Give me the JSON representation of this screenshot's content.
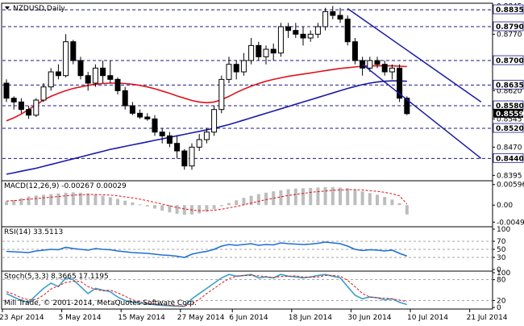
{
  "chart_data": [
    {
      "type": "candlestick",
      "title": "NZDUSD,Daily",
      "ylim": [
        0.8385,
        0.8848
      ],
      "y_ticks": [
        "0.8845",
        "0.8770",
        "0.8695",
        "0.8620",
        "0.8545",
        "0.8470",
        "0.8395"
      ],
      "level_lines": [
        {
          "value": 0.8835,
          "label": "0.8835"
        },
        {
          "value": 0.879,
          "label": "0.8790"
        },
        {
          "value": 0.87,
          "label": "0.8700"
        },
        {
          "value": 0.8635,
          "label": "0.8635"
        },
        {
          "value": 0.858,
          "label": "0.8580"
        },
        {
          "value": 0.852,
          "label": "0.8520"
        },
        {
          "value": 0.844,
          "label": "0.8440"
        }
      ],
      "current_price": {
        "value": 0.8559,
        "label": "0.8559"
      },
      "candles": [
        [
          0.864,
          0.865,
          0.859,
          0.86
        ],
        [
          0.86,
          0.8605,
          0.857,
          0.859
        ],
        [
          0.859,
          0.86,
          0.856,
          0.857
        ],
        [
          0.857,
          0.858,
          0.8545,
          0.8555
        ],
        [
          0.8555,
          0.86,
          0.855,
          0.8595
        ],
        [
          0.8595,
          0.864,
          0.859,
          0.863
        ],
        [
          0.863,
          0.868,
          0.862,
          0.867
        ],
        [
          0.867,
          0.869,
          0.865,
          0.866
        ],
        [
          0.866,
          0.877,
          0.8655,
          0.875
        ],
        [
          0.875,
          0.8755,
          0.869,
          0.87
        ],
        [
          0.87,
          0.871,
          0.865,
          0.866
        ],
        [
          0.866,
          0.867,
          0.862,
          0.864
        ],
        [
          0.864,
          0.869,
          0.863,
          0.868
        ],
        [
          0.868,
          0.87,
          0.864,
          0.866
        ],
        [
          0.866,
          0.87,
          0.864,
          0.865
        ],
        [
          0.865,
          0.8655,
          0.861,
          0.862
        ],
        [
          0.862,
          0.863,
          0.857,
          0.858
        ],
        [
          0.858,
          0.859,
          0.8555,
          0.856
        ],
        [
          0.856,
          0.857,
          0.8545,
          0.855
        ],
        [
          0.855,
          0.856,
          0.854,
          0.8545
        ],
        [
          0.8545,
          0.8555,
          0.85,
          0.851
        ],
        [
          0.851,
          0.852,
          0.848,
          0.85
        ],
        [
          0.85,
          0.851,
          0.847,
          0.848
        ],
        [
          0.848,
          0.85,
          0.844,
          0.846
        ],
        [
          0.846,
          0.8465,
          0.841,
          0.842
        ],
        [
          0.842,
          0.848,
          0.841,
          0.847
        ],
        [
          0.847,
          0.8505,
          0.846,
          0.849
        ],
        [
          0.849,
          0.852,
          0.848,
          0.851
        ],
        [
          0.851,
          0.858,
          0.85,
          0.857
        ],
        [
          0.857,
          0.866,
          0.856,
          0.865
        ],
        [
          0.865,
          0.871,
          0.864,
          0.869
        ],
        [
          0.869,
          0.87,
          0.865,
          0.867
        ],
        [
          0.867,
          0.872,
          0.866,
          0.87
        ],
        [
          0.87,
          0.876,
          0.869,
          0.874
        ],
        [
          0.874,
          0.875,
          0.87,
          0.871
        ],
        [
          0.871,
          0.874,
          0.869,
          0.873
        ],
        [
          0.873,
          0.8745,
          0.87,
          0.872
        ],
        [
          0.872,
          0.88,
          0.871,
          0.879
        ],
        [
          0.879,
          0.88,
          0.876,
          0.878
        ],
        [
          0.878,
          0.88,
          0.876,
          0.877
        ],
        [
          0.877,
          0.879,
          0.874,
          0.876
        ],
        [
          0.876,
          0.878,
          0.875,
          0.877
        ],
        [
          0.877,
          0.88,
          0.876,
          0.879
        ],
        [
          0.879,
          0.884,
          0.878,
          0.883
        ],
        [
          0.883,
          0.8845,
          0.881,
          0.882
        ],
        [
          0.882,
          0.884,
          0.88,
          0.881
        ],
        [
          0.881,
          0.882,
          0.874,
          0.875
        ],
        [
          0.875,
          0.876,
          0.869,
          0.87
        ],
        [
          0.87,
          0.871,
          0.866,
          0.868
        ],
        [
          0.868,
          0.871,
          0.867,
          0.87
        ],
        [
          0.87,
          0.871,
          0.868,
          0.869
        ],
        [
          0.869,
          0.87,
          0.866,
          0.867
        ],
        [
          0.867,
          0.869,
          0.865,
          0.868
        ],
        [
          0.868,
          0.869,
          0.859,
          0.86
        ],
        [
          0.86,
          0.8605,
          0.8555,
          0.8559
        ]
      ],
      "ma_fast": [
        0.854,
        0.8548,
        0.8558,
        0.857,
        0.8582,
        0.8595,
        0.8605,
        0.8613,
        0.862,
        0.8626,
        0.863,
        0.8634,
        0.8637,
        0.8639,
        0.864,
        0.864,
        0.8639,
        0.8637,
        0.8634,
        0.863,
        0.8625,
        0.8619,
        0.8613,
        0.8606,
        0.86,
        0.8594,
        0.859,
        0.8588,
        0.859,
        0.8596,
        0.8605,
        0.8615,
        0.8624,
        0.8632,
        0.8639,
        0.8645,
        0.865,
        0.8654,
        0.8658,
        0.8661,
        0.8664,
        0.8667,
        0.867,
        0.8673,
        0.8676,
        0.8679,
        0.8681,
        0.8683,
        0.8685,
        0.8686,
        0.8686,
        0.8686,
        0.8686,
        0.8685,
        0.8684
      ],
      "ma_slow": [
        0.8398,
        0.8402,
        0.8406,
        0.841,
        0.8414,
        0.8419,
        0.8424,
        0.8429,
        0.8434,
        0.8439,
        0.8444,
        0.8449,
        0.8454,
        0.8459,
        0.8464,
        0.8468,
        0.8472,
        0.8476,
        0.848,
        0.8484,
        0.8488,
        0.8492,
        0.8496,
        0.85,
        0.8504,
        0.8508,
        0.8512,
        0.8516,
        0.852,
        0.8525,
        0.853,
        0.8536,
        0.8542,
        0.8548,
        0.8554,
        0.856,
        0.8566,
        0.8572,
        0.8578,
        0.8584,
        0.859,
        0.8596,
        0.8602,
        0.8608,
        0.8614,
        0.862,
        0.8626,
        0.8631,
        0.8636,
        0.864,
        0.8643,
        0.8645,
        0.8646,
        0.8646,
        0.8645
      ],
      "trend_lines": [
        {
          "from": [
            46,
            0.8838
          ],
          "to": [
            64,
            0.859
          ]
        },
        {
          "from": [
            48,
            0.869
          ],
          "to": [
            64,
            0.844
          ]
        }
      ]
    },
    {
      "type": "bar",
      "title": "MACD(12,26,9) -0.00267 0.00029",
      "ylim": [
        -0.0058,
        0.0066
      ],
      "y_ticks": [
        "0.00596",
        "0.00",
        "-0.00493"
      ],
      "values": [
        0.001,
        0.0015,
        0.002,
        0.0025,
        0.0028,
        0.003,
        0.0032,
        0.0034,
        0.0036,
        0.0037,
        0.0036,
        0.0034,
        0.0031,
        0.0027,
        0.0023,
        0.0018,
        0.0013,
        0.0008,
        0.0002,
        -0.0004,
        -0.001,
        -0.0016,
        -0.0021,
        -0.0025,
        -0.0028,
        -0.0027,
        -0.0024,
        -0.0019,
        -0.0012,
        -0.0003,
        0.0006,
        0.0014,
        0.0021,
        0.0027,
        0.0032,
        0.0036,
        0.004,
        0.0043,
        0.0046,
        0.0048,
        0.0049,
        0.005,
        0.0051,
        0.0052,
        0.0052,
        0.0051,
        0.0049,
        0.0045,
        0.004,
        0.0035,
        0.003,
        0.0024,
        0.0016,
        0.0006,
        -0.0027
      ],
      "signal": [
        0.0012,
        0.0013,
        0.0015,
        0.0017,
        0.0019,
        0.0021,
        0.0023,
        0.0025,
        0.0027,
        0.0029,
        0.003,
        0.0031,
        0.0031,
        0.003,
        0.0029,
        0.0027,
        0.0024,
        0.0021,
        0.0017,
        0.0013,
        0.0008,
        0.0003,
        -0.0002,
        -0.0007,
        -0.0011,
        -0.0014,
        -0.0016,
        -0.0016,
        -0.0015,
        -0.0012,
        -0.0008,
        -0.0004,
        0.0001,
        0.0006,
        0.0011,
        0.0016,
        0.002,
        0.0024,
        0.0028,
        0.0031,
        0.0034,
        0.0037,
        0.0039,
        0.0041,
        0.0043,
        0.0044,
        0.0045,
        0.0045,
        0.0044,
        0.0042,
        0.004,
        0.0037,
        0.0033,
        0.0027,
        0.0003
      ]
    },
    {
      "type": "line",
      "title": "RSI(14) 33.5113",
      "ylim": [
        0,
        100
      ],
      "y_ticks": [
        100,
        70,
        50,
        30,
        0
      ],
      "level_lines": [
        70,
        50,
        30
      ],
      "values": [
        45,
        44,
        43,
        42,
        46,
        48,
        50,
        49,
        55,
        52,
        50,
        48,
        52,
        50,
        49,
        46,
        44,
        42,
        41,
        40,
        38,
        36,
        35,
        33,
        30,
        38,
        42,
        45,
        50,
        58,
        62,
        60,
        62,
        64,
        60,
        62,
        61,
        66,
        64,
        63,
        62,
        63,
        65,
        68,
        66,
        64,
        58,
        50,
        47,
        49,
        48,
        46,
        48,
        40,
        33.5
      ]
    },
    {
      "type": "line",
      "title": "Stoch(5,3,3) 8.3665 17.1195",
      "ylim": [
        0,
        100
      ],
      "y_ticks": [
        100,
        80,
        20,
        0
      ],
      "level_lines": [
        80,
        20
      ],
      "main": [
        40,
        30,
        20,
        15,
        35,
        55,
        70,
        60,
        85,
        80,
        60,
        40,
        55,
        50,
        45,
        30,
        20,
        15,
        12,
        10,
        8,
        6,
        5,
        4,
        3,
        25,
        40,
        55,
        70,
        85,
        95,
        90,
        92,
        95,
        85,
        88,
        85,
        95,
        90,
        88,
        85,
        88,
        92,
        95,
        90,
        85,
        60,
        35,
        25,
        30,
        28,
        22,
        25,
        15,
        8.4
      ],
      "signal": [
        45,
        38,
        28,
        22,
        23,
        35,
        53,
        62,
        72,
        75,
        75,
        60,
        52,
        48,
        50,
        42,
        32,
        22,
        16,
        12,
        10,
        8,
        6,
        5,
        4,
        11,
        23,
        40,
        55,
        70,
        83,
        90,
        92,
        92,
        91,
        89,
        86,
        89,
        90,
        91,
        88,
        87,
        88,
        92,
        92,
        90,
        78,
        60,
        40,
        30,
        28,
        27,
        25,
        21,
        17.1
      ]
    }
  ],
  "x_ticks": [
    {
      "index": 0,
      "label": "23 Apr 2014"
    },
    {
      "index": 8,
      "label": "5 May 2014"
    },
    {
      "index": 16,
      "label": "15 May 2014"
    },
    {
      "index": 24,
      "label": "27 May 2014"
    },
    {
      "index": 31,
      "label": "6 Jun 2014"
    },
    {
      "index": 39,
      "label": "18 Jun 2014"
    },
    {
      "index": 47,
      "label": "30 Jun 2014"
    },
    {
      "index": 55,
      "label": "10 Jul 2014"
    },
    {
      "index": 63,
      "label": "21 Jul 2014"
    }
  ],
  "copyright": "Mill Trade, © 2001-2014, MetaQuotes Software Corp.",
  "colors": {
    "bg": "#ffffff",
    "ma_fast": "#e0121c",
    "ma_slow": "#1a1aa8",
    "trend": "#1a1aa8",
    "rsi": "#1e6fd6",
    "stoch_main": "#3aa0c8",
    "stoch_signal": "#e0121c",
    "macd_bar": "#bdbdbd",
    "macd_signal": "#e0121c",
    "level_line": "#1a1a8a",
    "price_label_bg": "#ffffff",
    "current_label_bg": "#000000"
  }
}
